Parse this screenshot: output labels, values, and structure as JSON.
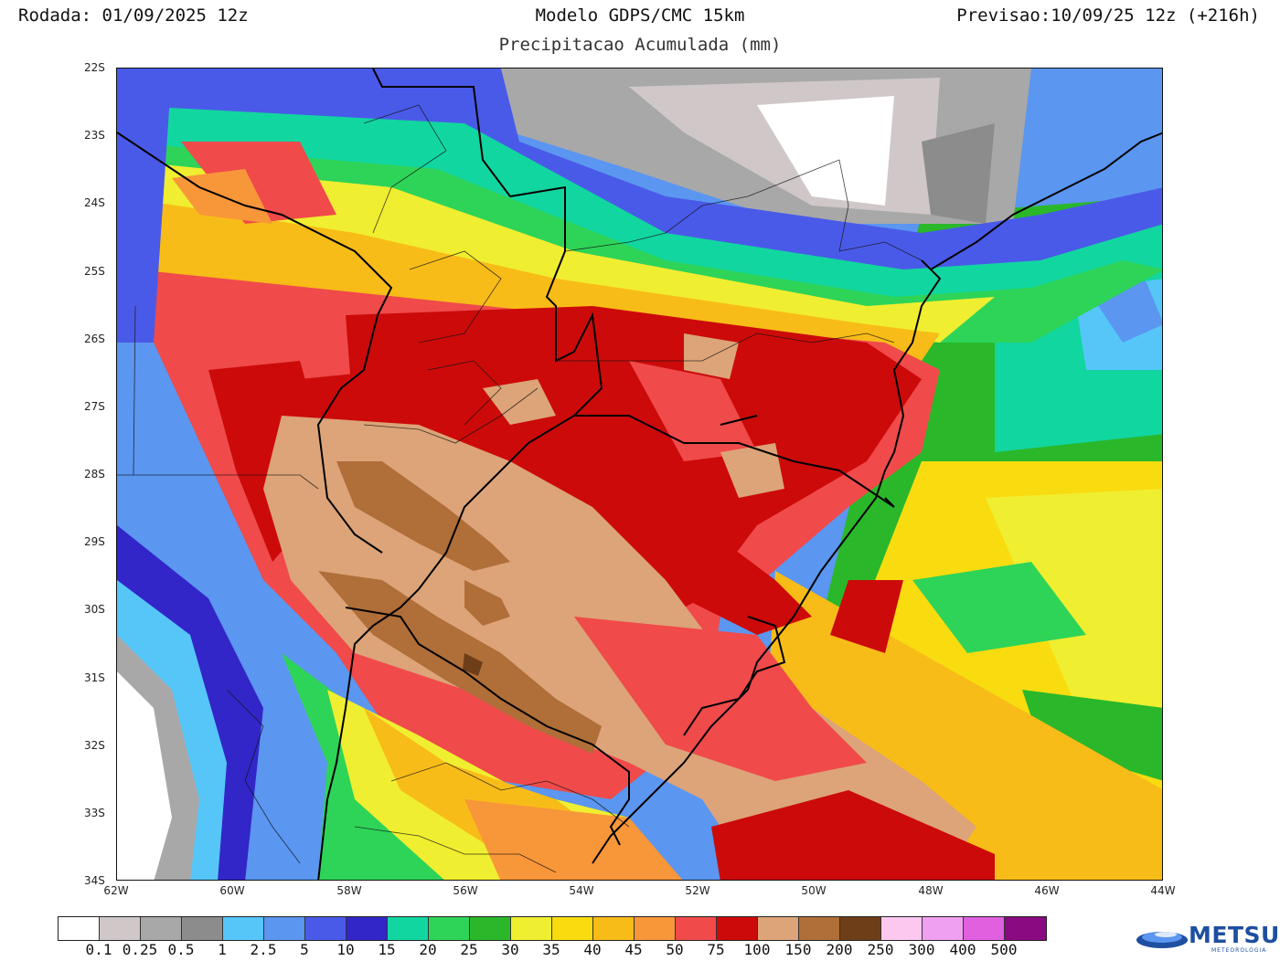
{
  "header": {
    "rodada": "Rodada: 01/09/2025 12z",
    "model": "Modelo GDPS/CMC 15km",
    "variable": "Precipitacao Acumulada (mm)",
    "previsao": "Previsao:10/09/25 12z (+216h)"
  },
  "axes": {
    "lat_labels": [
      "22S",
      "23S",
      "24S",
      "25S",
      "26S",
      "27S",
      "28S",
      "29S",
      "30S",
      "31S",
      "32S",
      "33S",
      "34S"
    ],
    "lon_labels": [
      "62W",
      "60W",
      "58W",
      "56W",
      "54W",
      "52W",
      "50W",
      "48W",
      "46W",
      "44W"
    ]
  },
  "legend": {
    "colors": [
      "#ffffff",
      "#d0c8c8",
      "#a8a8a8",
      "#8c8c8c",
      "#56c6f8",
      "#5b96f0",
      "#4a5ae8",
      "#3226c8",
      "#12d6a0",
      "#2ed458",
      "#2ab82a",
      "#f0ee30",
      "#f8dc10",
      "#f8bc18",
      "#f8963a",
      "#f04a4a",
      "#cc0a0a",
      "#dca478",
      "#b06e38",
      "#6e3e18",
      "#fcc8f0",
      "#f0a0f0",
      "#e060e0",
      "#8a0a82"
    ],
    "labels": [
      "0.1",
      "0.25",
      "0.5",
      "1",
      "2.5",
      "5",
      "10",
      "15",
      "20",
      "25",
      "30",
      "35",
      "40",
      "45",
      "50",
      "75",
      "100",
      "150",
      "200",
      "250",
      "300",
      "400",
      "500"
    ]
  },
  "logo": {
    "name": "METSUL",
    "subtitle": "METEOROLOGIA"
  }
}
